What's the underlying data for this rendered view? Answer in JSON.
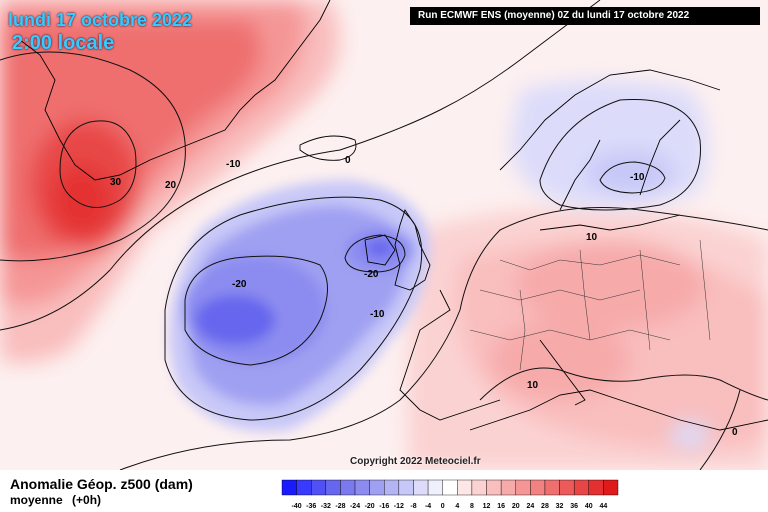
{
  "header": {
    "date": "lundi 17 octobre 2022",
    "time": "2:00 locale",
    "run": "Run ECMWF ENS (moyenne) 0Z du lundi 17 octobre 2022"
  },
  "copyright": "Copyright 2022 Meteociel.fr",
  "footer": {
    "field": "Anomalie Géop. z500 (dam)",
    "subtitle": "moyenne",
    "lead": "(+0h)"
  },
  "colorscale": {
    "ticks": [
      "-40",
      "-36",
      "-32",
      "-28",
      "-24",
      "-20",
      "-16",
      "-12",
      "-8",
      "-4",
      "0",
      "4",
      "8",
      "12",
      "16",
      "20",
      "24",
      "28",
      "32",
      "36",
      "40",
      "44"
    ],
    "colors": [
      "#1a1aff",
      "#3a3aff",
      "#5050f5",
      "#6666ee",
      "#7a7aee",
      "#8c8cf0",
      "#a0a0f2",
      "#b4b4f5",
      "#c8c8f8",
      "#dcdcfa",
      "#f0f0fd",
      "#ffffff",
      "#fde6e6",
      "#fbd2d2",
      "#f9bebe",
      "#f7aaaa",
      "#f59696",
      "#f28282",
      "#ef6e6e",
      "#ec5a5a",
      "#e84646",
      "#e43030",
      "#e01a1a"
    ]
  },
  "contour_labels": [
    {
      "id": "greenland-30",
      "text": "30"
    },
    {
      "id": "greenland-20",
      "text": "20"
    },
    {
      "id": "north-atlantic-m10",
      "text": "-10"
    },
    {
      "id": "iceland-0",
      "text": "0"
    },
    {
      "id": "atlantic-m20",
      "text": "-20"
    },
    {
      "id": "ireland-m20",
      "text": "-20"
    },
    {
      "id": "biscay-m10",
      "text": "-10"
    },
    {
      "id": "scandinavia-m10",
      "text": "-10"
    },
    {
      "id": "baltic-10",
      "text": "10"
    },
    {
      "id": "mediterranean-10",
      "text": "10"
    },
    {
      "id": "africa-0",
      "text": "0"
    }
  ]
}
